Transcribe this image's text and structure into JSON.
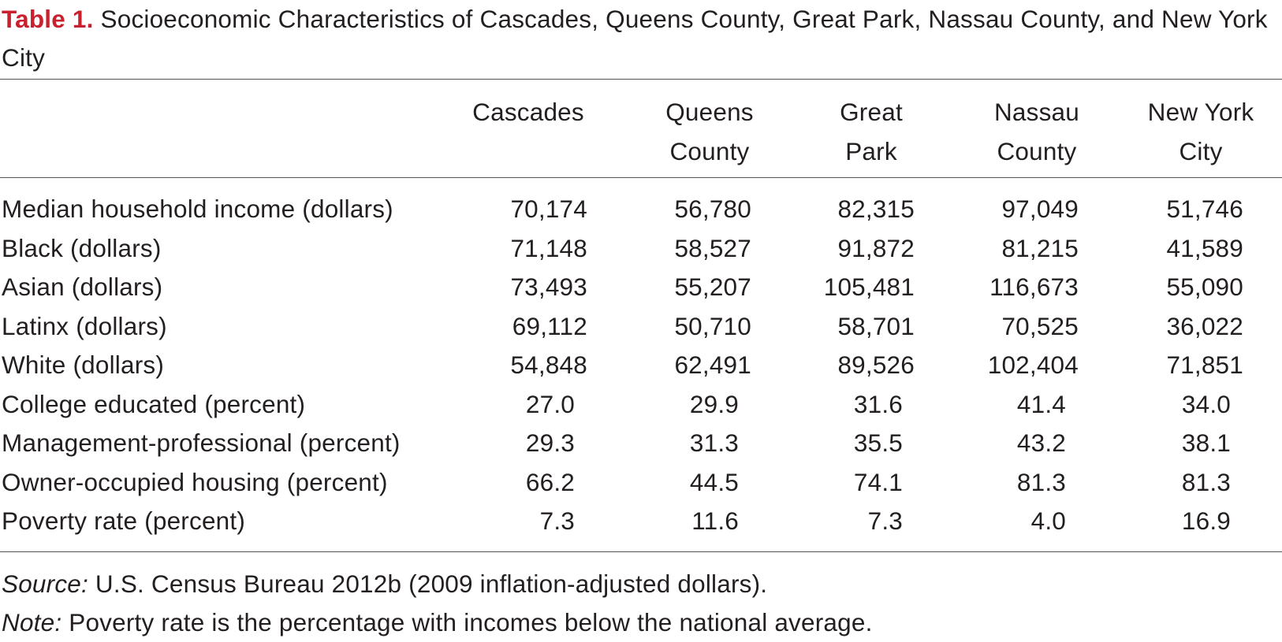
{
  "table": {
    "caption_label": "Table 1.",
    "caption_text": "Socioeconomic Characteristics of Cascades, Queens County, Great Park, Nassau County, and New York City",
    "columns": [
      {
        "line1": "",
        "line2": "Cascades"
      },
      {
        "line1": "Queens",
        "line2": "County"
      },
      {
        "line1": "Great",
        "line2": "Park"
      },
      {
        "line1": "Nassau",
        "line2": "County"
      },
      {
        "line1": "New York",
        "line2": "City"
      }
    ],
    "rows": [
      {
        "label": "Median household income (dollars)",
        "values": [
          "70,174",
          "56,780",
          "82,315",
          "97,049",
          "51,746"
        ]
      },
      {
        "label": "Black (dollars)",
        "values": [
          "71,148",
          "58,527",
          "91,872",
          "81,215",
          "41,589"
        ]
      },
      {
        "label": "Asian (dollars)",
        "values": [
          "73,493",
          "55,207",
          "105,481",
          "116,673",
          "55,090"
        ]
      },
      {
        "label": "Latinx (dollars)",
        "values": [
          "69,112",
          "50,710",
          "58,701",
          "70,525",
          "36,022"
        ]
      },
      {
        "label": "White (dollars)",
        "values": [
          "54,848",
          "62,491",
          "89,526",
          "102,404",
          "71,851"
        ]
      },
      {
        "label": "College educated (percent)",
        "values": [
          "27.0",
          "29.9",
          "31.6",
          "41.4",
          "34.0"
        ]
      },
      {
        "label": "Management-professional (percent)",
        "values": [
          "29.3",
          "31.3",
          "35.5",
          "43.2",
          "38.1"
        ]
      },
      {
        "label": "Owner-occupied housing (percent)",
        "values": [
          "66.2",
          "44.5",
          "74.1",
          "81.3",
          "81.3"
        ]
      },
      {
        "label": "Poverty rate (percent)",
        "values": [
          "7.3",
          "11.6",
          "7.3",
          "4.0",
          "16.9"
        ]
      }
    ],
    "source_label": "Source:",
    "source_text": " U.S. Census Bureau 2012b (2009 inflation-adjusted dollars).",
    "note_label": "Note:",
    "note_text": " Poverty rate is the percentage with incomes below the national average."
  },
  "colors": {
    "caption_label": "#c8202f",
    "text": "#231f20",
    "rule": "#555555"
  }
}
